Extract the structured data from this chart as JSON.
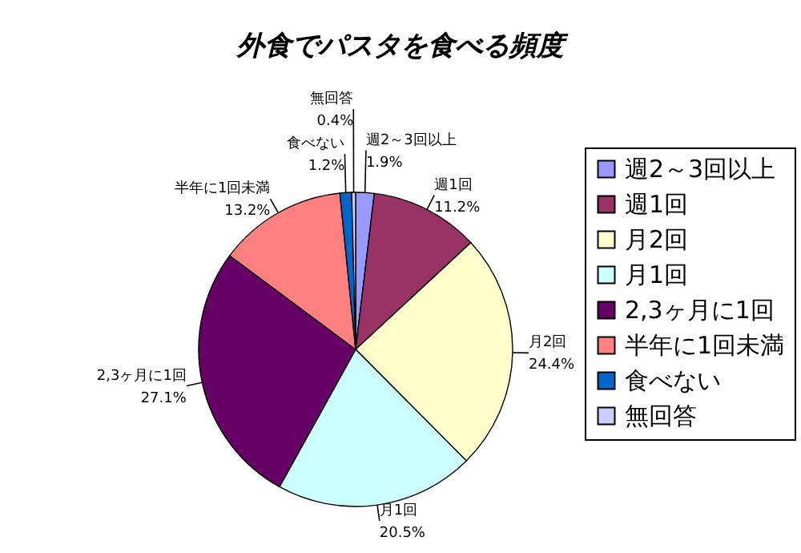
{
  "chart_data": {
    "type": "pie",
    "title": "外食でパスタを食べる頻度",
    "categories": [
      "週2～3回以上",
      "週1回",
      "月2回",
      "月1回",
      "2,3ヶ月に1回",
      "半年に1回未満",
      "食べない",
      "無回答"
    ],
    "values": [
      1.9,
      11.2,
      24.4,
      20.5,
      27.1,
      13.2,
      1.2,
      0.4
    ],
    "value_labels": [
      "1.9%",
      "11.2%",
      "24.4%",
      "20.5%",
      "27.1%",
      "13.2%",
      "1.2%",
      "0.4%"
    ],
    "colors": [
      "#9999ff",
      "#993366",
      "#ffffcc",
      "#ccffff",
      "#660066",
      "#ff8080",
      "#0066cc",
      "#ccccff"
    ],
    "legend": "right"
  }
}
